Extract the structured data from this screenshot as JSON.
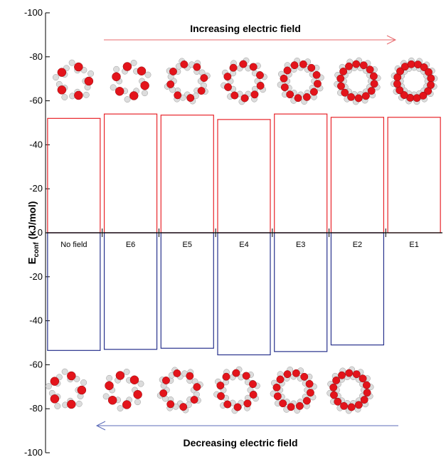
{
  "chart_data": {
    "type": "bar",
    "categories": [
      "No field",
      "E6",
      "E5",
      "E4",
      "E3",
      "E2",
      "E1"
    ],
    "series": [
      {
        "values": [
          -52,
          -54,
          -53.5,
          -51.5,
          -54,
          -52.5,
          -52.5
        ],
        "color": "#e8242a"
      },
      {
        "values": [
          53.5,
          53,
          52.5,
          55.5,
          54,
          51,
          null
        ],
        "color": "#27318c"
      }
    ],
    "ylim": [
      100,
      -100
    ],
    "yticks": [
      -100,
      -80,
      -60,
      -40,
      -20,
      0,
      20,
      40,
      60,
      80,
      100
    ],
    "ytick_labels": [
      "-100",
      "-80",
      "-60",
      "-40",
      "-20",
      "0",
      "-20",
      "-40",
      "-60",
      "-80",
      "-100"
    ],
    "ylabel_main": "E",
    "ylabel_sub": "conf",
    "ylabel_unit": "(kJ/mol)",
    "annotations": [
      {
        "text": "Increasing electric field",
        "color": "#d4202a",
        "arrow": "right"
      },
      {
        "text": "Decreasing electric field",
        "color": "#2b3a96",
        "arrow": "left"
      }
    ],
    "top_cluster_sizes": [
      5,
      6,
      8,
      10,
      12,
      14,
      16
    ],
    "bottom_cluster_sizes": [
      5,
      6,
      8,
      10,
      12,
      14
    ]
  }
}
